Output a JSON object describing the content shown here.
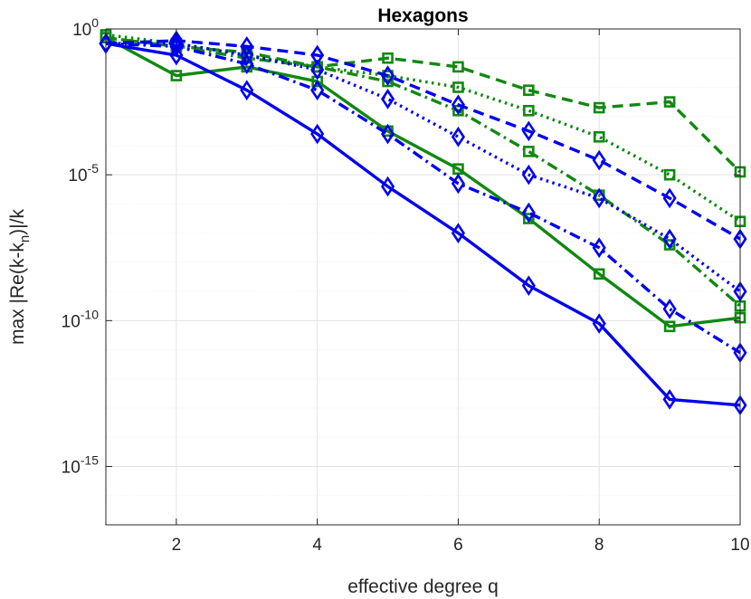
{
  "chart_data": {
    "type": "line",
    "title": "Hexagons",
    "xlabel": "effective degree q",
    "ylabel_parts": [
      "max |Re(k-k",
      "n",
      ")|/k"
    ],
    "xlim": [
      1,
      10
    ],
    "ylog_lim": [
      -17,
      0
    ],
    "x_ticks": [
      2,
      4,
      6,
      8,
      10
    ],
    "x_tick_labels": [
      "2",
      "4",
      "6",
      "8",
      "10"
    ],
    "y_ticks": [
      {
        "exp": 0,
        "base": "10",
        "sup": "0"
      },
      {
        "exp": -5,
        "base": "10",
        "sup": "-5"
      },
      {
        "exp": -10,
        "base": "10",
        "sup": "-10"
      },
      {
        "exp": -15,
        "base": "10",
        "sup": "-15"
      }
    ],
    "grid": true,
    "colors": {
      "blue": "#0000ee",
      "green": "#118811",
      "grid": "#e3e3e3",
      "minor_grid": "#efefef",
      "axis": "#262626"
    },
    "series": [
      {
        "name": "green-solid",
        "color": "green",
        "dash": "solid",
        "marker": "square",
        "x": [
          1,
          2,
          3,
          4,
          5,
          6,
          7,
          8,
          9,
          10
        ],
        "y": [
          -0.3,
          -1.6,
          -1.3,
          -1.8,
          -3.5,
          -4.8,
          -6.5,
          -8.4,
          -10.2,
          -9.9
        ]
      },
      {
        "name": "green-dashdot",
        "color": "green",
        "dash": "dashdot",
        "marker": "square",
        "x": [
          1,
          2,
          3,
          4,
          5,
          6,
          7,
          8,
          9,
          10
        ],
        "y": [
          -0.3,
          -0.6,
          -1.0,
          -1.3,
          -1.8,
          -2.8,
          -4.2,
          -5.7,
          -7.4,
          -9.5
        ]
      },
      {
        "name": "green-dotted",
        "color": "green",
        "dash": "dotted",
        "marker": "square",
        "x": [
          1,
          2,
          3,
          4,
          5,
          6,
          7,
          8,
          9,
          10
        ],
        "y": [
          -0.2,
          -0.5,
          -0.9,
          -1.3,
          -1.6,
          -2.0,
          -2.8,
          -3.7,
          -5.0,
          -6.6
        ]
      },
      {
        "name": "green-dashed",
        "color": "green",
        "dash": "dashed",
        "marker": "square",
        "x": [
          1,
          2,
          3,
          4,
          5,
          6,
          7,
          8,
          9,
          10
        ],
        "y": [
          -0.3,
          -0.6,
          -0.8,
          -1.3,
          -1.0,
          -1.3,
          -2.1,
          -2.7,
          -2.5,
          -4.9
        ]
      },
      {
        "name": "blue-solid",
        "color": "blue",
        "dash": "solid",
        "marker": "diamond",
        "x": [
          1,
          2,
          3,
          4,
          5,
          6,
          7,
          8,
          9,
          10
        ],
        "y": [
          -0.5,
          -0.9,
          -2.1,
          -3.6,
          -5.4,
          -7.0,
          -8.8,
          -10.1,
          -12.7,
          -12.9
        ]
      },
      {
        "name": "blue-dashdot",
        "color": "blue",
        "dash": "dashdot",
        "marker": "diamond",
        "x": [
          1,
          2,
          3,
          4,
          5,
          6,
          7,
          8,
          9,
          10
        ],
        "y": [
          -0.5,
          -0.6,
          -1.2,
          -2.1,
          -3.6,
          -5.3,
          -6.3,
          -7.5,
          -9.6,
          -11.1
        ]
      },
      {
        "name": "blue-dotted",
        "color": "blue",
        "dash": "dotted",
        "marker": "diamond",
        "x": [
          1,
          2,
          3,
          4,
          5,
          6,
          7,
          8,
          9,
          10
        ],
        "y": [
          -0.5,
          -0.5,
          -0.9,
          -1.4,
          -2.4,
          -3.7,
          -5.0,
          -5.8,
          -7.2,
          -9.0
        ]
      },
      {
        "name": "blue-dashed",
        "color": "blue",
        "dash": "dashed",
        "marker": "diamond",
        "x": [
          1,
          2,
          3,
          4,
          5,
          6,
          7,
          8,
          9,
          10
        ],
        "y": [
          -0.5,
          -0.4,
          -0.6,
          -0.9,
          -1.6,
          -2.6,
          -3.5,
          -4.5,
          -5.8,
          -7.2
        ]
      }
    ]
  }
}
